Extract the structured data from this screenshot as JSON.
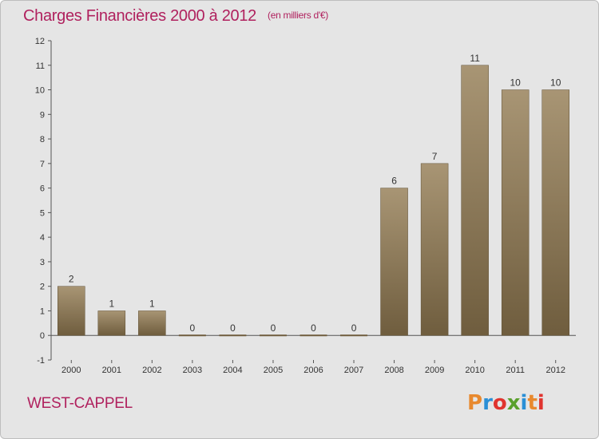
{
  "chart_data": {
    "type": "bar",
    "title": "Charges Financières 2000 à 2012",
    "subtitle": "(en milliers d'€)",
    "categories": [
      "2000",
      "2001",
      "2002",
      "2003",
      "2004",
      "2005",
      "2006",
      "2007",
      "2008",
      "2009",
      "2010",
      "2011",
      "2012"
    ],
    "values": [
      2,
      1,
      1,
      0,
      0,
      0,
      0,
      0,
      6,
      7,
      11,
      10,
      10
    ],
    "value_labels": [
      "2",
      "1",
      "1",
      "0",
      "0",
      "0",
      "0",
      "0",
      "6",
      "7",
      "11",
      "10",
      "10"
    ],
    "ylim": [
      -1,
      12
    ],
    "yticks": [
      -1,
      0,
      1,
      2,
      3,
      4,
      5,
      6,
      7,
      8,
      9,
      10,
      11,
      12
    ],
    "xlabel": "",
    "ylabel": "",
    "grid": false,
    "colors": {
      "bar": "#857252",
      "title": "#b0215e",
      "background": "#e5e5e5"
    }
  },
  "footer": {
    "commune": "WEST-CAPPEL",
    "logo_text": "Proxiti"
  },
  "logo_colors": [
    "#e8892e",
    "#2a8fd6",
    "#e0342f",
    "#5aa02c",
    "#2a8fd6",
    "#e8892e",
    "#e0342f"
  ]
}
